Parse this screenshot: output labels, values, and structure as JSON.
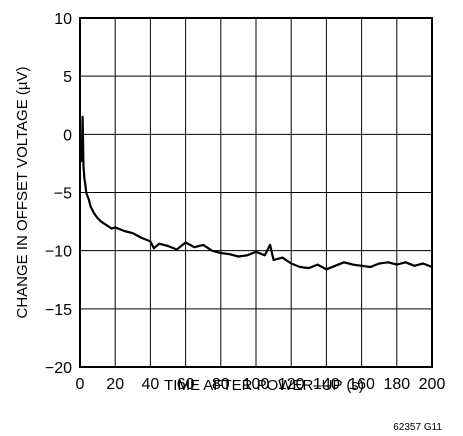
{
  "chart_data": {
    "type": "line",
    "xlabel": "TIME AFTER POWER–UP (s)",
    "ylabel": "CHANGE IN OFFSET VOLTAGE (µV)",
    "xlim": [
      0,
      200
    ],
    "ylim": [
      -20,
      10
    ],
    "xticks": [
      0,
      20,
      40,
      60,
      80,
      100,
      120,
      140,
      160,
      180,
      200
    ],
    "xtick_labels": [
      "0",
      "20",
      "40",
      "60",
      "80",
      "100",
      "120",
      "140",
      "160",
      "180",
      "200"
    ],
    "yticks": [
      10,
      5,
      0,
      -5,
      -10,
      -15,
      -20
    ],
    "ytick_labels": [
      "10",
      "5",
      "0",
      "−5",
      "−10",
      "−15",
      "−20"
    ],
    "grid": true,
    "line_color": "#000000",
    "series": [
      {
        "x": [
          0,
          0.5,
          1,
          1.5,
          2,
          2.5,
          3,
          3.5,
          4,
          5,
          6,
          7,
          8,
          10,
          12,
          15,
          18,
          20,
          25,
          30,
          35,
          40,
          42,
          45,
          50,
          55,
          60,
          65,
          70,
          75,
          80,
          85,
          90,
          95,
          100,
          105,
          108,
          110,
          115,
          120,
          125,
          130,
          135,
          140,
          145,
          150,
          155,
          160,
          165,
          170,
          175,
          180,
          185,
          190,
          195,
          200
        ],
        "y": [
          -0.5,
          -1.5,
          -2.3,
          1.5,
          -2.8,
          -3.8,
          -4.3,
          -5.0,
          -5.2,
          -5.6,
          -6.2,
          -6.5,
          -6.8,
          -7.2,
          -7.5,
          -7.8,
          -8.1,
          -8.0,
          -8.3,
          -8.5,
          -8.9,
          -9.2,
          -9.8,
          -9.4,
          -9.6,
          -9.9,
          -9.3,
          -9.7,
          -9.5,
          -10.0,
          -10.2,
          -10.3,
          -10.5,
          -10.4,
          -10.1,
          -10.4,
          -9.5,
          -10.8,
          -10.6,
          -11.1,
          -11.4,
          -11.5,
          -11.2,
          -11.6,
          -11.3,
          -11.0,
          -11.2,
          -11.3,
          -11.4,
          -11.1,
          -11.0,
          -11.2,
          -11.0,
          -11.3,
          -11.1,
          -11.4
        ]
      }
    ]
  },
  "figure_id": "62357 G11"
}
